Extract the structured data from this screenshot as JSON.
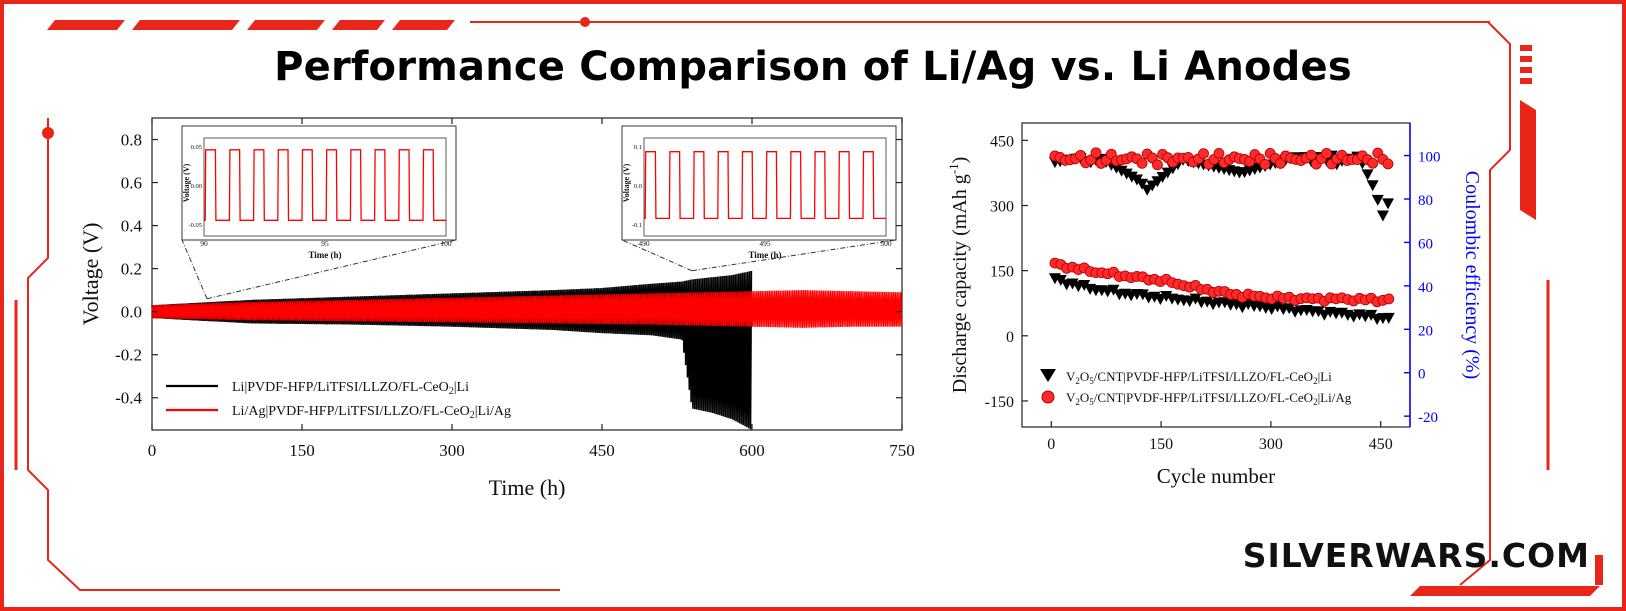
{
  "page": {
    "title": "Performance Comparison of Li/Ag vs. Li Anodes",
    "watermark": "SILVERWARS.COM",
    "frame_color": "#e8261a"
  },
  "chart_data": [
    {
      "type": "line",
      "xlabel": "Time (h)",
      "ylabel": "Voltage (V)",
      "xlim": [
        0,
        750
      ],
      "ylim": [
        -0.55,
        0.9
      ],
      "x_ticks": [
        0,
        150,
        300,
        450,
        600,
        750
      ],
      "y_ticks": [
        -0.4,
        -0.2,
        0.0,
        0.2,
        0.4,
        0.6,
        0.8
      ],
      "x_tick_labels": [
        "0",
        "150",
        "300",
        "450",
        "600",
        "750"
      ],
      "y_tick_labels": [
        "-0.4",
        "-0.2",
        "0.0",
        "0.2",
        "0.4",
        "0.6",
        "0.8"
      ],
      "legend_position": "bottom-left",
      "series": [
        {
          "name": "Li|PVDF-HFP/LiTFSI/LLZO/FL-CeO2|Li",
          "color": "#000000",
          "envelope": {
            "x": [
              0,
              100,
              200,
              300,
              400,
              450,
              500,
              530,
              540,
              560,
              580,
              600
            ],
            "upper": [
              0.03,
              0.055,
              0.07,
              0.085,
              0.1,
              0.11,
              0.13,
              0.14,
              0.15,
              0.16,
              0.17,
              0.19
            ],
            "lower": [
              -0.03,
              -0.055,
              -0.06,
              -0.07,
              -0.085,
              -0.1,
              -0.11,
              -0.13,
              -0.45,
              -0.47,
              -0.5,
              -0.55
            ]
          }
        },
        {
          "name": "Li/Ag|PVDF-HFP/LiTFSI/LLZO/FL-CeO2|Li/Ag",
          "color": "#ff0000",
          "envelope": {
            "x": [
              0,
              100,
              200,
              300,
              400,
              500,
              600,
              650,
              700,
              750
            ],
            "upper": [
              0.03,
              0.045,
              0.055,
              0.065,
              0.075,
              0.085,
              0.095,
              0.1,
              0.095,
              0.09
            ],
            "lower": [
              -0.03,
              -0.04,
              -0.045,
              -0.05,
              -0.055,
              -0.06,
              -0.07,
              -0.075,
              -0.07,
              -0.07
            ]
          }
        }
      ],
      "insets": [
        {
          "xlabel": "Time (h)",
          "ylabel": "Voltage (V)",
          "xlim": [
            90,
            100
          ],
          "ylim": [
            -0.065,
            0.06
          ],
          "x_ticks": [
            90,
            95,
            100
          ],
          "y_ticks": [
            -0.05,
            0.0,
            0.05
          ],
          "x_tick_labels": [
            "90",
            "95",
            "100"
          ],
          "y_tick_labels": [
            "-0.05",
            "0.00",
            "0.05"
          ],
          "amplitude": 0.045,
          "periods": 10,
          "zoom_from_x": 55
        },
        {
          "xlabel": "Time (h)",
          "ylabel": "Voltage (V)",
          "xlim": [
            490,
            500
          ],
          "ylim": [
            -0.13,
            0.12
          ],
          "x_ticks": [
            490,
            495,
            500
          ],
          "y_ticks": [
            -0.1,
            0.0,
            0.1
          ],
          "x_tick_labels": [
            "490",
            "495",
            "500"
          ],
          "y_tick_labels": [
            "-0.1",
            "0.0",
            "0.1"
          ],
          "amplitude": 0.085,
          "periods": 10,
          "zoom_from_x": 540
        }
      ]
    },
    {
      "type": "scatter",
      "xlabel": "Cycle number",
      "ylabel_left": "Discharge capacity (mAh g⁻¹)",
      "ylabel_right": "Coulombic efficiency (%)",
      "xlim": [
        -40,
        490
      ],
      "ylim_left": [
        -210,
        490
      ],
      "ylim_right": [
        -25,
        115
      ],
      "x_ticks": [
        0,
        150,
        300,
        450
      ],
      "y_ticks_left": [
        -150,
        0,
        150,
        300,
        450
      ],
      "y_ticks_right": [
        -20,
        0,
        20,
        40,
        60,
        80,
        100
      ],
      "x_tick_labels": [
        "0",
        "150",
        "300",
        "450"
      ],
      "y_tick_labels_left": [
        "-150",
        "0",
        "150",
        "300",
        "450"
      ],
      "y_tick_labels_right": [
        "-20",
        "0",
        "20",
        "40",
        "60",
        "80",
        "100"
      ],
      "right_axis_color": "#0000ff",
      "legend_position": "bottom-left",
      "series": [
        {
          "name": "V2O5/CNT|PVDF-HFP/LiTFSI/LLZO/FL-CeO2|Li",
          "marker": "triangle-down",
          "color": "#000000",
          "capacity": {
            "x": [
              5,
              50,
              100,
              150,
              200,
              250,
              300,
              350,
              400,
              450,
              465
            ],
            "y": [
              130,
              110,
              97,
              88,
              80,
              72,
              65,
              57,
              50,
              42,
              40
            ]
          },
          "efficiency": {
            "x": [
              5,
              60,
              122,
              130,
              180,
              260,
              330,
              420,
              445,
              450,
              455,
              460
            ],
            "y": [
              97,
              100,
              88,
              84,
              98,
              92,
              99,
              100,
              82,
              70,
              74,
              78
            ]
          }
        },
        {
          "name": "V2O5/CNT|PVDF-HFP/LiTFSI/LLZO/FL-CeO2|Li/Ag",
          "marker": "circle",
          "color": "#ff0000",
          "capacity": {
            "x": [
              5,
              50,
              100,
              150,
              200,
              250,
              300,
              350,
              400,
              450,
              465
            ],
            "y": [
              165,
              150,
              138,
              128,
              110,
              95,
              88,
              85,
              85,
              82,
              85
            ]
          },
          "efficiency": {
            "x": [
              5,
              100,
              200,
              300,
              400,
              465
            ],
            "y": [
              99,
              99,
              99,
              99,
              99,
              99
            ]
          }
        }
      ]
    }
  ]
}
